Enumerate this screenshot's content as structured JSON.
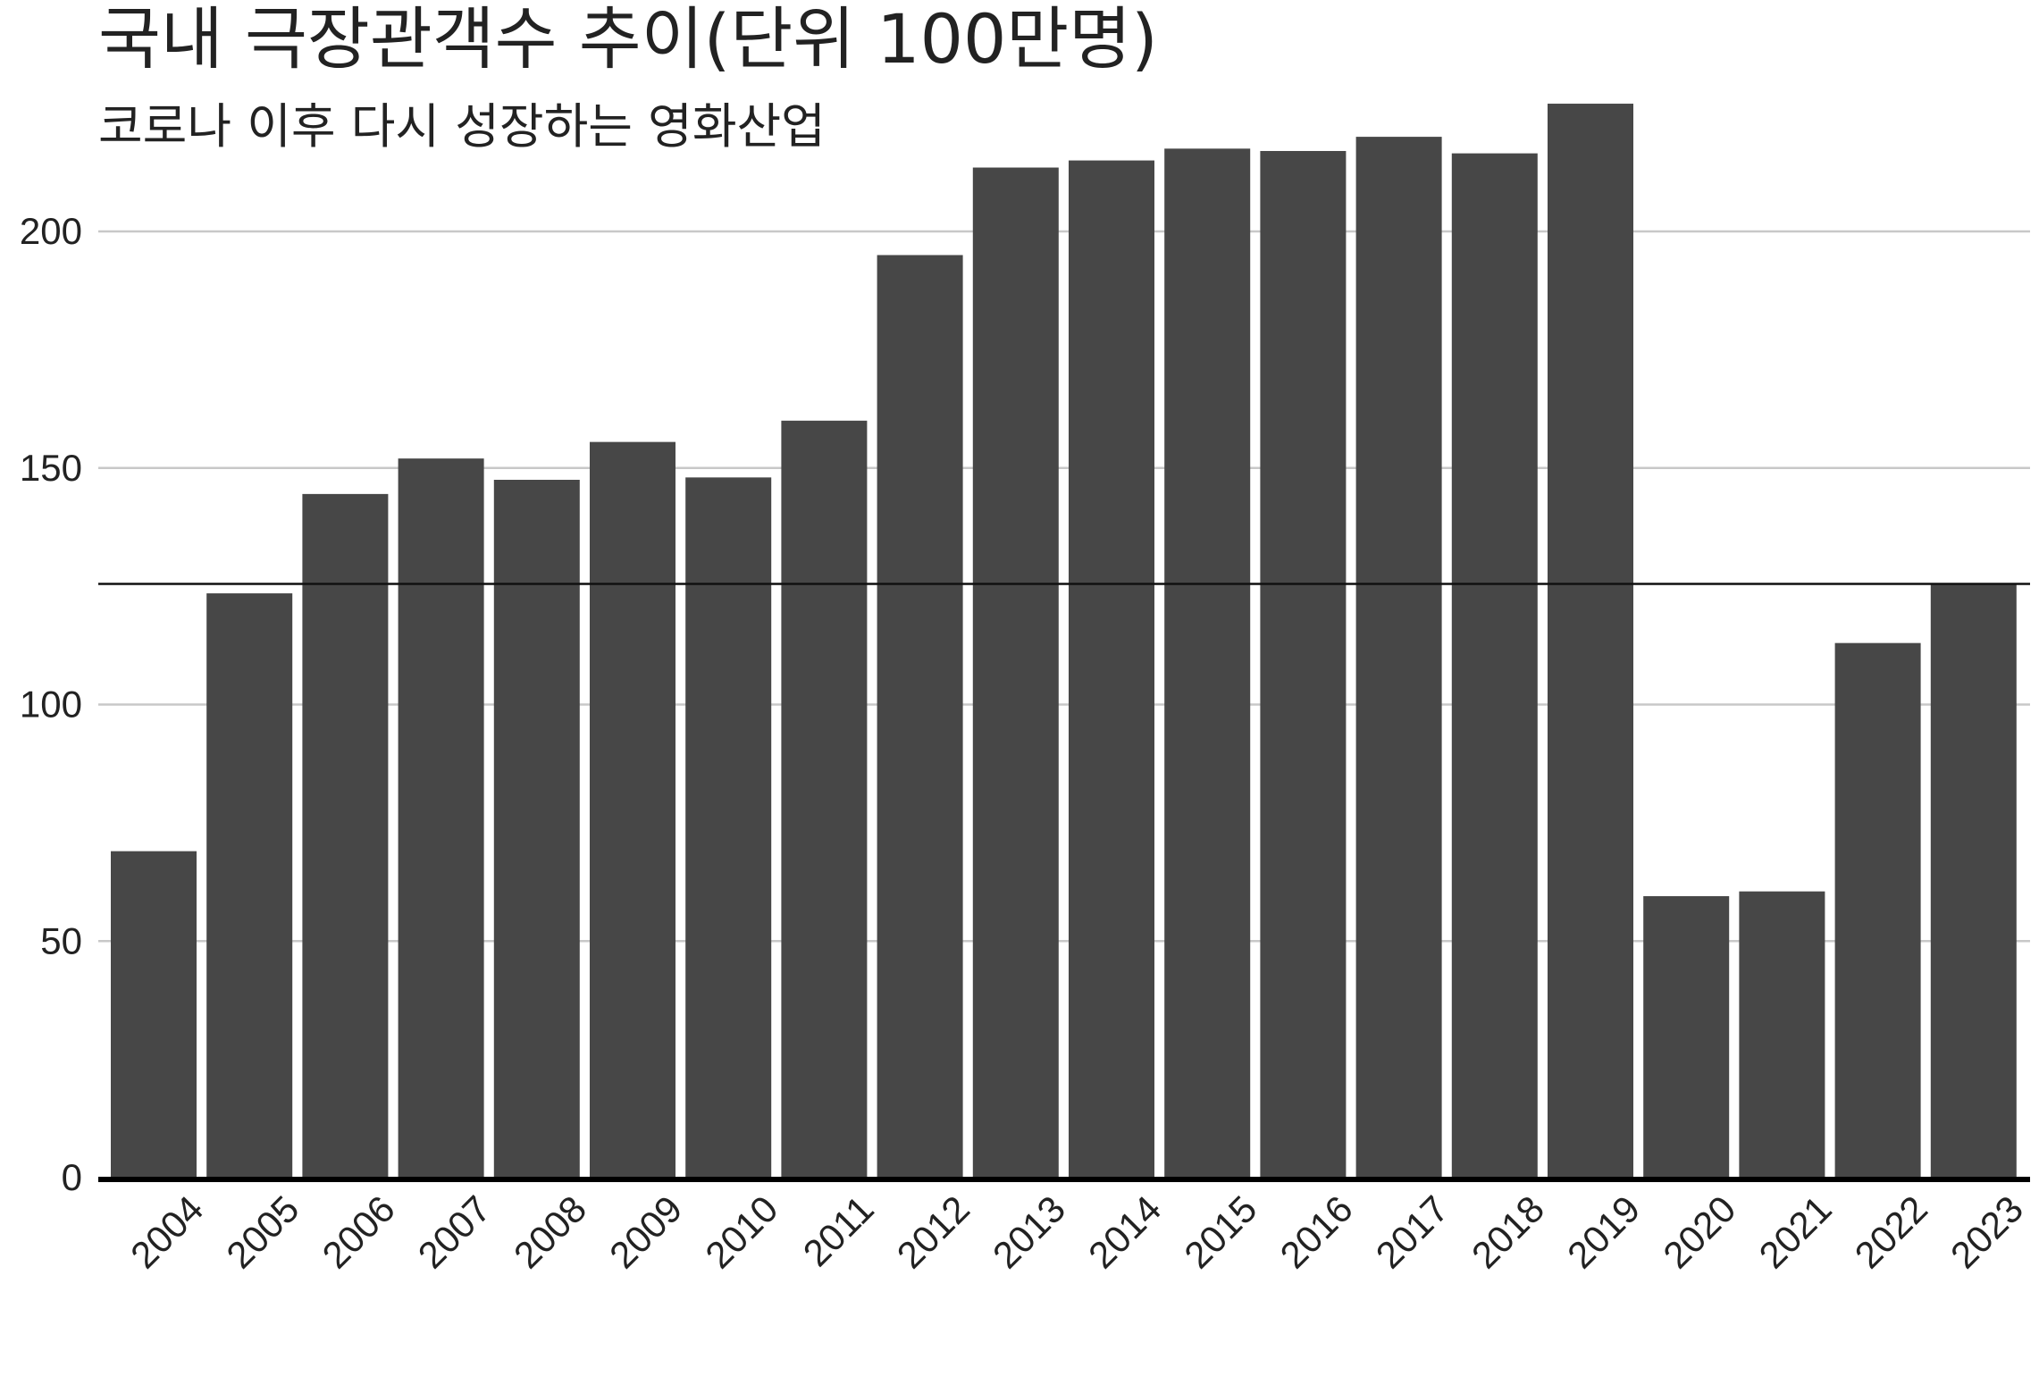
{
  "chart_data": {
    "type": "bar",
    "title": "국내 극장관객수 추이(단위 100만명)",
    "subtitle": "코로나 이후 다시 성장하는 영화산업",
    "xlabel": "",
    "ylabel": "",
    "categories": [
      "2004",
      "2005",
      "2006",
      "2007",
      "2008",
      "2009",
      "2010",
      "2011",
      "2012",
      "2013",
      "2014",
      "2015",
      "2016",
      "2017",
      "2018",
      "2019",
      "2020",
      "2021",
      "2022",
      "2023"
    ],
    "values": [
      69,
      123.5,
      144.5,
      152,
      147.5,
      155.5,
      148,
      160,
      195,
      213.5,
      215,
      217.5,
      217,
      220,
      216.5,
      227,
      59.5,
      60.5,
      113,
      125.5
    ],
    "ylim": [
      0,
      230
    ],
    "yticks": [
      0,
      50,
      100,
      150,
      200
    ],
    "reference_line": 125.5,
    "grid": true,
    "colors": {
      "bar": "#474747",
      "grid": "#c8c8c8",
      "reference": "#111111",
      "baseline": "#000000"
    }
  }
}
